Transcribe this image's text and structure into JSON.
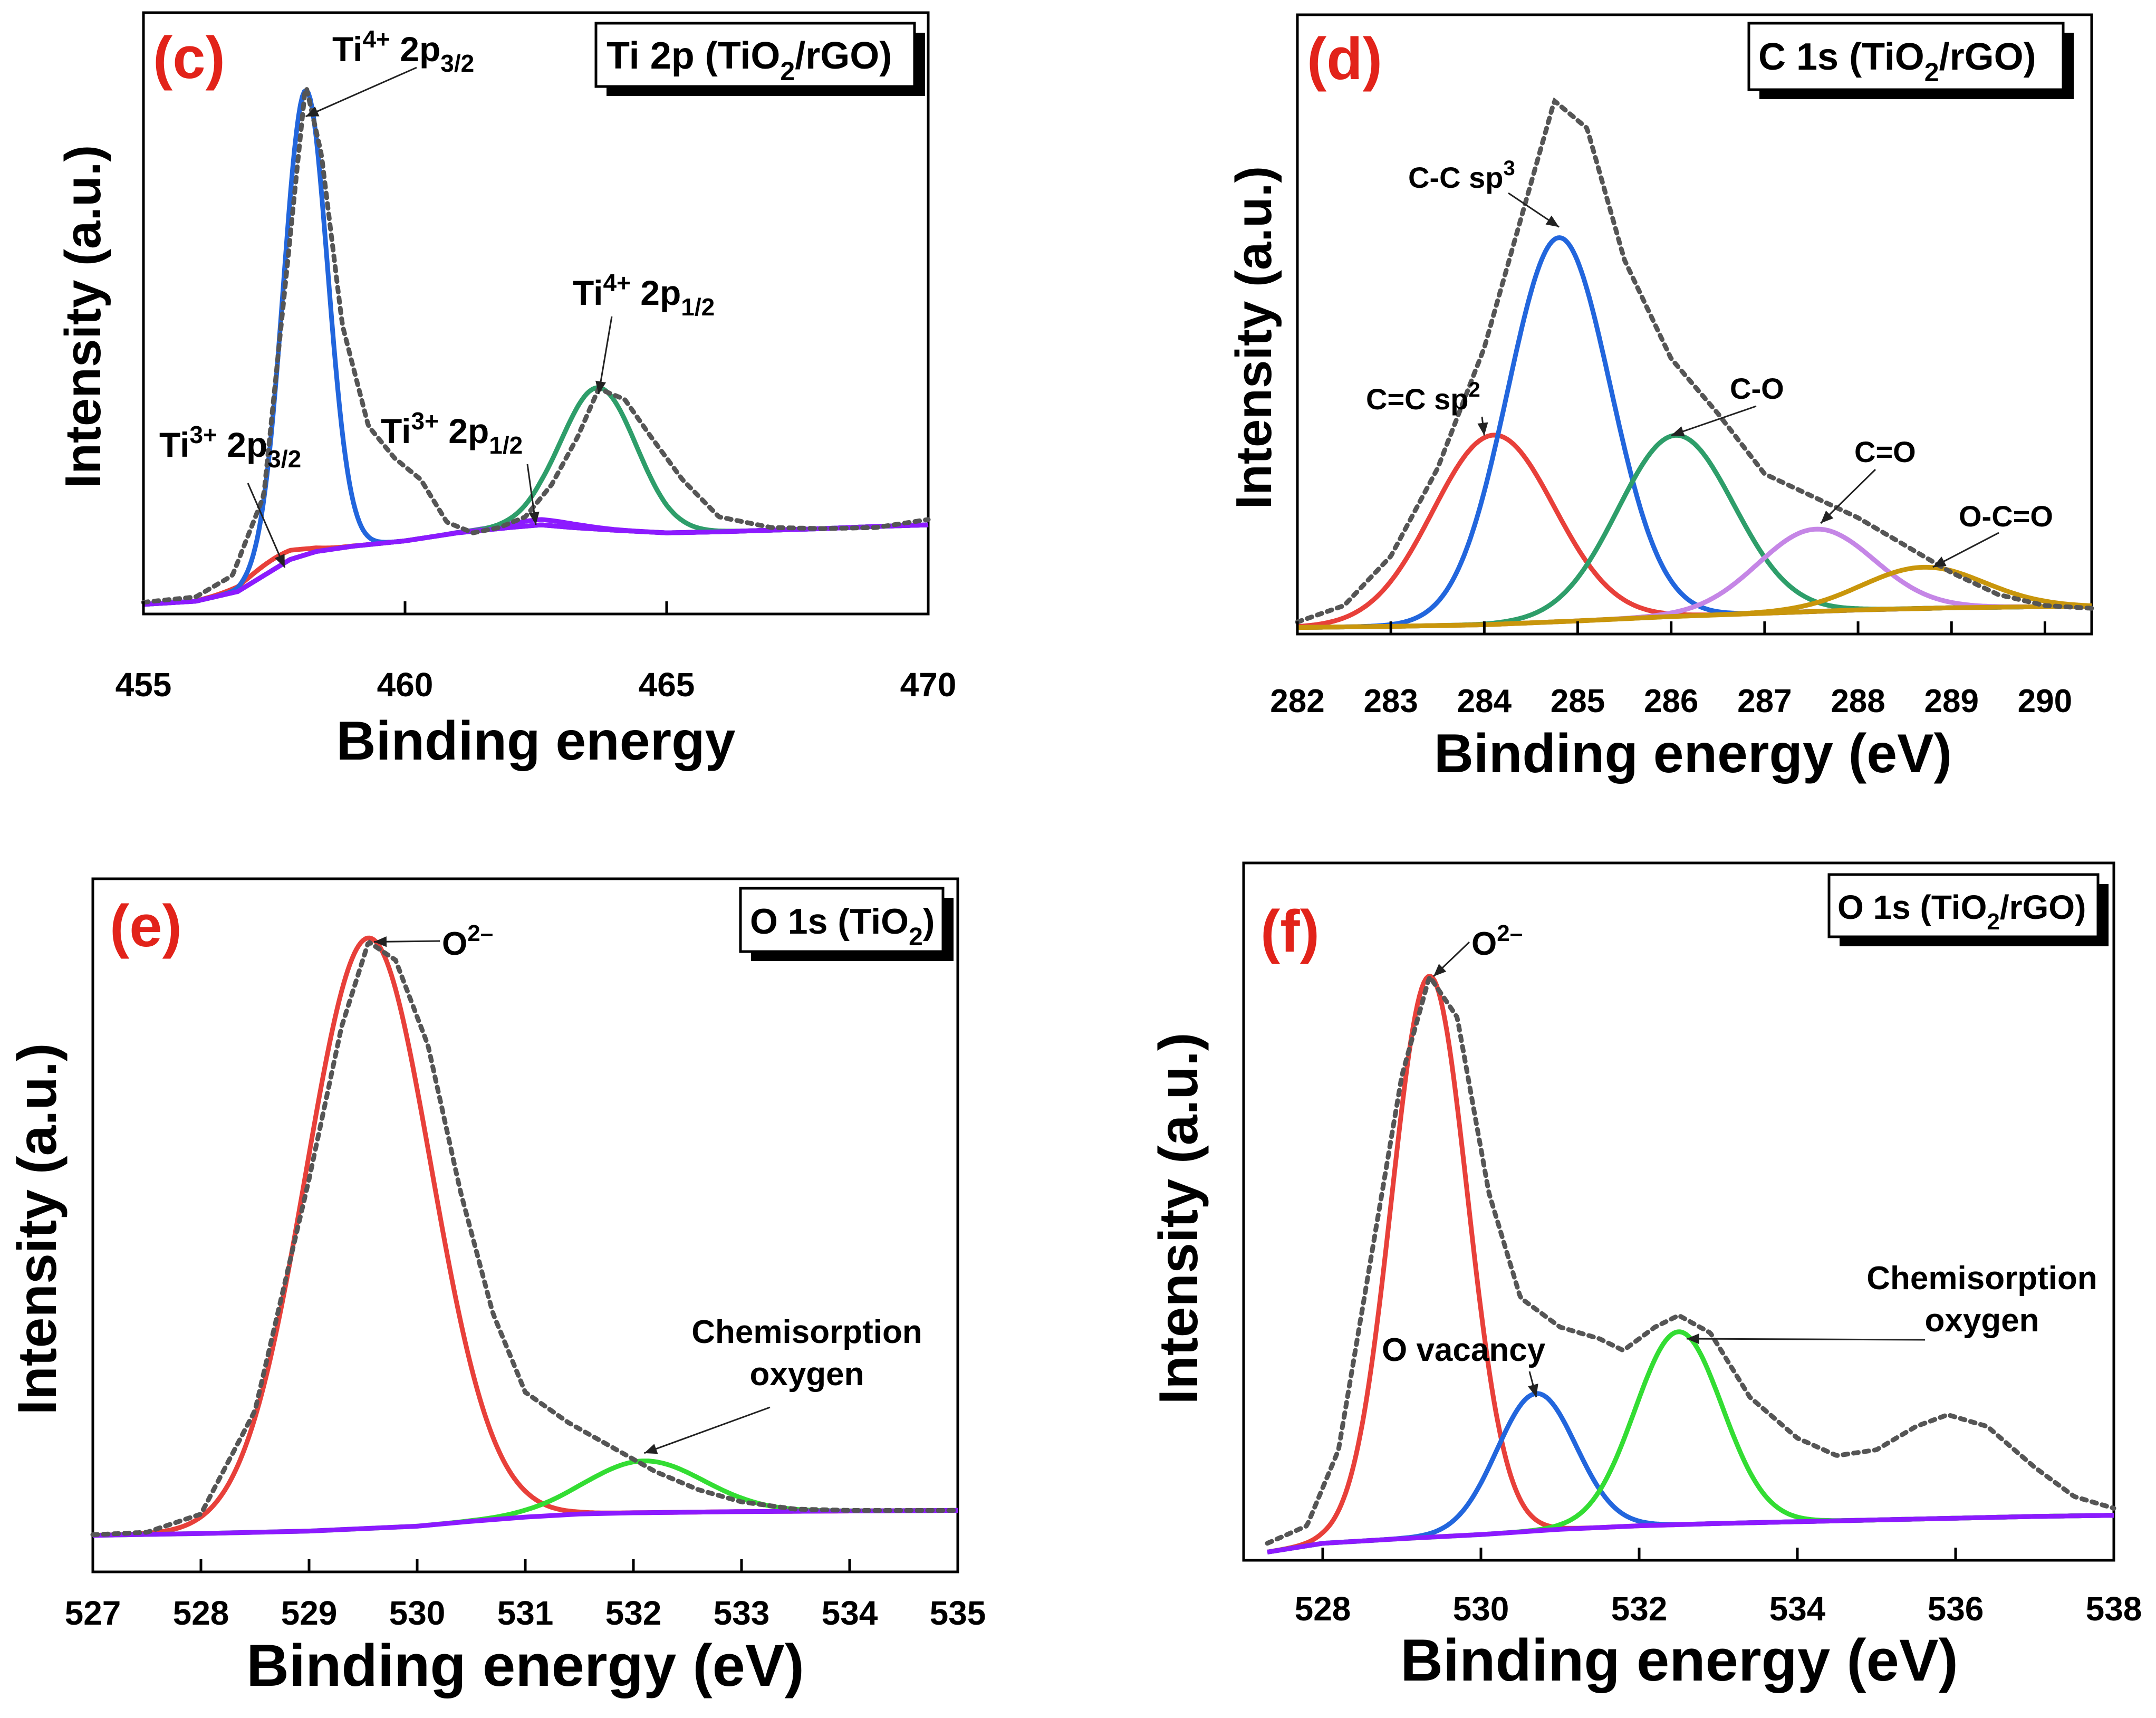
{
  "chart_data": [
    {
      "id": "c",
      "type": "line",
      "panel_label": "(c)",
      "title": "Ti 2p (TiO2/rGO)",
      "title_parts": [
        "Ti 2p (TiO",
        "2",
        "/rGO)"
      ],
      "xlabel": "Binding energy",
      "ylabel": "Intensity (a.u.)",
      "xlim": [
        455,
        470
      ],
      "ylim": [
        0,
        1.0
      ],
      "xticks": [
        455,
        460,
        465,
        470
      ],
      "background": {
        "name": "Background",
        "color": "#8c1aff",
        "points": [
          [
            455,
            0.016
          ],
          [
            456,
            0.022
          ],
          [
            456.8,
            0.04
          ],
          [
            457.3,
            0.07
          ],
          [
            457.8,
            0.1
          ],
          [
            458.3,
            0.115
          ],
          [
            459,
            0.125
          ],
          [
            460,
            0.135
          ],
          [
            461,
            0.15
          ],
          [
            462,
            0.16
          ],
          [
            462.6,
            0.165
          ],
          [
            463.2,
            0.16
          ],
          [
            464,
            0.155
          ],
          [
            465,
            0.15
          ],
          [
            466,
            0.152
          ],
          [
            467,
            0.155
          ],
          [
            468,
            0.158
          ],
          [
            469,
            0.162
          ],
          [
            470,
            0.165
          ]
        ]
      },
      "envelope": {
        "name": "Envelope",
        "color": "#555555",
        "points": [
          [
            455,
            0.02
          ],
          [
            456,
            0.03
          ],
          [
            456.7,
            0.07
          ],
          [
            457.3,
            0.22
          ],
          [
            457.8,
            0.7
          ],
          [
            458.1,
            0.99
          ],
          [
            458.4,
            0.86
          ],
          [
            458.8,
            0.54
          ],
          [
            459.3,
            0.35
          ],
          [
            459.8,
            0.29
          ],
          [
            460.3,
            0.25
          ],
          [
            460.8,
            0.17
          ],
          [
            461.3,
            0.15
          ],
          [
            461.8,
            0.16
          ],
          [
            462.3,
            0.18
          ],
          [
            462.8,
            0.24
          ],
          [
            463.3,
            0.33
          ],
          [
            463.7,
            0.42
          ],
          [
            464.2,
            0.4
          ],
          [
            464.7,
            0.33
          ],
          [
            465.3,
            0.25
          ],
          [
            466,
            0.18
          ],
          [
            467,
            0.16
          ],
          [
            468,
            0.158
          ],
          [
            469,
            0.16
          ],
          [
            470,
            0.175
          ]
        ]
      },
      "peaks": [
        {
          "name": "Ti3+ 2p3/2",
          "color": "#e8403a",
          "center": 457.5,
          "sigma": 0.55,
          "height": 0.02
        },
        {
          "name": "Ti4+ 2p3/2",
          "color": "#2266dd",
          "center": 458.1,
          "sigma": 0.42,
          "height": 0.87
        },
        {
          "name": "Ti3+ 2p1/2",
          "color": "#8c1aff",
          "center": 462.6,
          "sigma": 0.7,
          "height": 0.01
        },
        {
          "name": "Ti4+ 2p1/2",
          "color": "#2e9e6a",
          "center": 463.7,
          "sigma": 0.72,
          "height": 0.265
        }
      ],
      "annotations": [
        {
          "base": "Ti",
          "sup": "4+",
          "rest": " 2p",
          "sub": "3/2",
          "target": [
            458.1,
            0.93
          ]
        },
        {
          "base": "Ti",
          "sup": "4+",
          "rest": " 2p",
          "sub": "1/2",
          "target": [
            463.7,
            0.41
          ]
        },
        {
          "base": "Ti",
          "sup": "3+",
          "rest": " 2p",
          "sub": "3/2",
          "target": [
            457.7,
            0.085
          ]
        },
        {
          "base": "Ti",
          "sup": "3+",
          "rest": " 2p",
          "sub": "1/2",
          "target": [
            462.5,
            0.165
          ]
        }
      ]
    },
    {
      "id": "d",
      "type": "line",
      "panel_label": "(d)",
      "title": "C 1s (TiO2/rGO)",
      "title_parts": [
        "C 1s (TiO",
        "2",
        "/rGO)"
      ],
      "xlabel": "Binding energy (eV)",
      "ylabel": "Intensity (a.u.)",
      "xlim": [
        282,
        290.5
      ],
      "ylim": [
        0,
        1.0
      ],
      "xticks": [
        282,
        283,
        284,
        285,
        286,
        287,
        288,
        289,
        290
      ],
      "background": {
        "name": "Background",
        "color": "#c9960c",
        "points": [
          [
            282,
            0.01
          ],
          [
            283,
            0.012
          ],
          [
            284,
            0.015
          ],
          [
            285,
            0.022
          ],
          [
            286,
            0.03
          ],
          [
            287,
            0.036
          ],
          [
            288,
            0.042
          ],
          [
            289,
            0.046
          ],
          [
            290,
            0.048
          ],
          [
            290.5,
            0.048
          ]
        ]
      },
      "envelope": {
        "name": "Envelope",
        "color": "#555555",
        "points": [
          [
            282,
            0.02
          ],
          [
            282.5,
            0.05
          ],
          [
            283,
            0.14
          ],
          [
            283.5,
            0.3
          ],
          [
            284,
            0.52
          ],
          [
            284.4,
            0.76
          ],
          [
            284.75,
            0.97
          ],
          [
            285.1,
            0.92
          ],
          [
            285.5,
            0.68
          ],
          [
            286,
            0.5
          ],
          [
            286.5,
            0.4
          ],
          [
            287,
            0.29
          ],
          [
            287.5,
            0.25
          ],
          [
            288,
            0.21
          ],
          [
            288.5,
            0.16
          ],
          [
            289,
            0.11
          ],
          [
            289.5,
            0.07
          ],
          [
            290,
            0.05
          ],
          [
            290.5,
            0.045
          ]
        ]
      },
      "peaks": [
        {
          "name": "C=C sp2",
          "color": "#e8403a",
          "center": 284.1,
          "sigma": 0.65,
          "height": 0.345
        },
        {
          "name": "C-C sp3",
          "color": "#2266dd",
          "center": 284.8,
          "sigma": 0.55,
          "height": 0.7
        },
        {
          "name": "C-O",
          "color": "#2e9e6a",
          "center": 286.05,
          "sigma": 0.62,
          "height": 0.33
        },
        {
          "name": "C=O",
          "color": "#c586e6",
          "center": 287.55,
          "sigma": 0.62,
          "height": 0.15
        },
        {
          "name": "O-C=O",
          "color": "#c9960c",
          "center": 288.7,
          "sigma": 0.65,
          "height": 0.075
        }
      ],
      "annotations": [
        {
          "base": "C-C sp",
          "sup": "3",
          "rest": "",
          "sub": "",
          "target": [
            284.8,
            0.74
          ]
        },
        {
          "base": "C=C sp",
          "sup": "2",
          "rest": "",
          "sub": "",
          "target": [
            284.0,
            0.36
          ]
        },
        {
          "base": "C-O",
          "sup": "",
          "rest": "",
          "sub": "",
          "target": [
            286.0,
            0.36
          ]
        },
        {
          "base": "C=O",
          "sup": "",
          "rest": "",
          "sub": "",
          "target": [
            287.6,
            0.2
          ]
        },
        {
          "base": "O-C=O",
          "sup": "",
          "rest": "",
          "sub": "",
          "target": [
            288.8,
            0.12
          ]
        }
      ]
    },
    {
      "id": "e",
      "type": "line",
      "panel_label": "(e)",
      "title": "O 1s (TiO2)",
      "title_parts": [
        "O 1s (TiO",
        "2",
        ")"
      ],
      "xlabel": "Binding energy (eV)",
      "ylabel": "Intensity (a.u.)",
      "xlim": [
        527,
        535
      ],
      "ylim": [
        0,
        1.0
      ],
      "xticks": [
        527,
        528,
        529,
        530,
        531,
        532,
        533,
        534,
        535
      ],
      "background": {
        "name": "Background",
        "color": "#8c1aff",
        "points": [
          [
            527,
            0.015
          ],
          [
            528,
            0.018
          ],
          [
            529,
            0.022
          ],
          [
            530,
            0.03
          ],
          [
            530.5,
            0.038
          ],
          [
            531,
            0.045
          ],
          [
            531.5,
            0.05
          ],
          [
            532,
            0.052
          ],
          [
            533,
            0.054
          ],
          [
            534,
            0.055
          ],
          [
            535,
            0.056
          ]
        ]
      },
      "envelope": {
        "name": "Envelope",
        "color": "#555555",
        "points": [
          [
            527,
            0.016
          ],
          [
            527.5,
            0.02
          ],
          [
            528,
            0.05
          ],
          [
            528.5,
            0.22
          ],
          [
            529,
            0.6
          ],
          [
            529.3,
            0.85
          ],
          [
            529.55,
            0.99
          ],
          [
            529.8,
            0.96
          ],
          [
            530.1,
            0.82
          ],
          [
            530.4,
            0.58
          ],
          [
            530.7,
            0.38
          ],
          [
            531,
            0.25
          ],
          [
            531.4,
            0.2
          ],
          [
            531.8,
            0.16
          ],
          [
            532.2,
            0.12
          ],
          [
            532.6,
            0.09
          ],
          [
            533,
            0.07
          ],
          [
            533.5,
            0.058
          ],
          [
            534,
            0.056
          ],
          [
            535,
            0.056
          ]
        ]
      },
      "peaks": [
        {
          "name": "O2-",
          "color": "#e8403a",
          "center": 529.55,
          "sigma": 0.58,
          "height": 0.97
        },
        {
          "name": "Chemisorption oxygen",
          "color": "#33dd33",
          "center": 532.1,
          "sigma": 0.55,
          "height": 0.085
        }
      ],
      "annotations": [
        {
          "base": "O",
          "sup": "2–",
          "rest": "",
          "sub": "",
          "target": [
            529.6,
            0.99
          ]
        },
        {
          "base": "Chemisorption",
          "sup": "",
          "rest": "",
          "sub": "",
          "line2": "oxygen",
          "target": [
            532.1,
            0.15
          ]
        }
      ]
    },
    {
      "id": "f",
      "type": "line",
      "panel_label": "(f)",
      "title": "O 1s (TiO2/rGO)",
      "title_parts": [
        "O 1s (TiO",
        "2",
        "/rGO)"
      ],
      "xlabel": "Binding energy (eV)",
      "ylabel": "Intensity (a.u.)",
      "xlim": [
        527,
        538
      ],
      "ylim": [
        0,
        1.0
      ],
      "xticks": [
        528,
        530,
        532,
        534,
        536,
        538
      ],
      "background": {
        "name": "Background",
        "color": "#8c1aff",
        "points": [
          [
            527.3,
            0.005
          ],
          [
            528,
            0.02
          ],
          [
            529,
            0.028
          ],
          [
            530,
            0.035
          ],
          [
            531,
            0.044
          ],
          [
            532,
            0.05
          ],
          [
            533,
            0.054
          ],
          [
            534,
            0.057
          ],
          [
            535,
            0.06
          ],
          [
            536,
            0.063
          ],
          [
            537,
            0.066
          ],
          [
            538,
            0.068
          ]
        ]
      },
      "envelope": {
        "name": "Envelope",
        "color": "#555555",
        "points": [
          [
            527.3,
            0.02
          ],
          [
            527.8,
            0.05
          ],
          [
            528.2,
            0.18
          ],
          [
            528.6,
            0.5
          ],
          [
            529,
            0.82
          ],
          [
            529.35,
            0.99
          ],
          [
            529.7,
            0.92
          ],
          [
            530.1,
            0.62
          ],
          [
            530.5,
            0.44
          ],
          [
            531,
            0.39
          ],
          [
            531.5,
            0.37
          ],
          [
            531.8,
            0.35
          ],
          [
            532.2,
            0.39
          ],
          [
            532.5,
            0.41
          ],
          [
            532.9,
            0.38
          ],
          [
            533.4,
            0.27
          ],
          [
            534,
            0.2
          ],
          [
            534.5,
            0.17
          ],
          [
            535,
            0.18
          ],
          [
            535.5,
            0.22
          ],
          [
            535.9,
            0.24
          ],
          [
            536.4,
            0.22
          ],
          [
            537,
            0.15
          ],
          [
            537.5,
            0.1
          ],
          [
            538,
            0.08
          ]
        ]
      },
      "peaks": [
        {
          "name": "O2-",
          "color": "#e8403a",
          "center": 529.35,
          "sigma": 0.48,
          "height": 0.96
        },
        {
          "name": "O vacancy",
          "color": "#2266dd",
          "center": 530.7,
          "sigma": 0.5,
          "height": 0.235
        },
        {
          "name": "Chemisorption oxygen",
          "color": "#33dd33",
          "center": 532.5,
          "sigma": 0.55,
          "height": 0.33
        }
      ],
      "annotations": [
        {
          "base": "O",
          "sup": "2–",
          "rest": "",
          "sub": "",
          "target": [
            529.4,
            0.99
          ]
        },
        {
          "base": "O vacancy",
          "sup": "",
          "rest": "",
          "sub": "",
          "target": [
            530.7,
            0.27
          ]
        },
        {
          "base": "Chemisorption",
          "sup": "",
          "rest": "",
          "sub": "",
          "line2": "oxygen",
          "target": [
            532.6,
            0.37
          ]
        }
      ]
    }
  ]
}
